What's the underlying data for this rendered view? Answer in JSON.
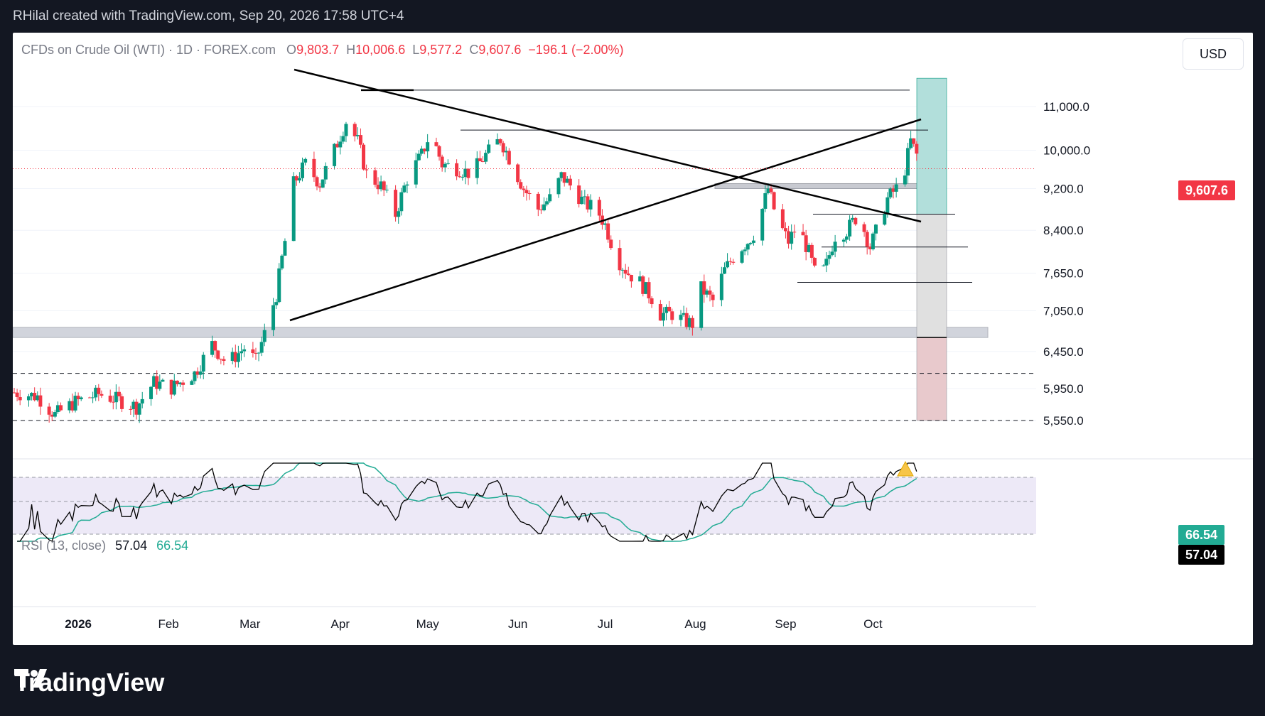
{
  "caption": "RHilal created with TradingView.com, Sep 20, 2026 17:58 UTC+4",
  "brand": {
    "name": "TradingView",
    "logo_icon": "tradingview-logo-icon"
  },
  "currency": "USD",
  "legend": {
    "symbol": "CFDs on Crude Oil (WTI) · 1D · FOREX.com",
    "open_label": "O",
    "open": "9,803.7",
    "high_label": "H",
    "high": "10,006.6",
    "low_label": "L",
    "low": "9,577.2",
    "close_label": "C",
    "close": "9,607.6",
    "change": "−196.1 (−2.00%)"
  },
  "rsi_legend": {
    "label": "RSI (13, close)",
    "value": "57.04",
    "ma": "66.54"
  },
  "badges": {
    "last_price": "9,607.6",
    "rsi_ma": "66.54",
    "rsi_value": "57.04"
  },
  "colors": {
    "up": "#089981",
    "down": "#f23645",
    "rsi_line": "#000000",
    "rsi_ma": "#22ab94",
    "rsi_band": "#ede9f7"
  },
  "chart_data": {
    "type": "candlestick",
    "price_axis": {
      "ticks": [
        11000,
        10000,
        9200,
        8400,
        7650,
        7050,
        6450,
        5950,
        5550
      ],
      "tick_labels": [
        "11,000.0",
        "10,000.0",
        "9,200.0",
        "8,400.0",
        "7,650.0",
        "7,050.0",
        "6,450.0",
        "5,950.0",
        "5,550.0"
      ],
      "scale": "log"
    },
    "time_axis": {
      "labels": [
        "2026",
        "Feb",
        "Mar",
        "Apr",
        "May",
        "Jun",
        "Jul",
        "Aug",
        "Sep",
        "Oct"
      ],
      "label_dates": [
        "2026-01-01",
        "2026-02-01",
        "2026-03-01",
        "2026-04-01",
        "2026-05-01",
        "2026-06-01",
        "2026-07-01",
        "2026-08-01",
        "2026-09-01",
        "2026-10-01"
      ],
      "start": "2025-12-10",
      "end": "2026-10-18"
    },
    "close_path": [
      [
        "2025-12-10",
        5900
      ],
      [
        "2025-12-18",
        5850
      ],
      [
        "2025-12-24",
        5620
      ],
      [
        "2025-12-31",
        5780
      ],
      [
        "2026-01-08",
        5880
      ],
      [
        "2026-01-15",
        5800
      ],
      [
        "2026-01-21",
        5720
      ],
      [
        "2026-01-27",
        6030
      ],
      [
        "2026-02-02",
        5960
      ],
      [
        "2026-02-10",
        6150
      ],
      [
        "2026-02-16",
        6550
      ],
      [
        "2026-02-21",
        6280
      ],
      [
        "2026-02-27",
        6500
      ],
      [
        "2026-03-03",
        6320
      ],
      [
        "2026-03-06",
        6700
      ],
      [
        "2026-03-10",
        7300
      ],
      [
        "2026-03-13",
        8200
      ],
      [
        "2026-03-16",
        9300
      ],
      [
        "2026-03-20",
        9700
      ],
      [
        "2026-03-25",
        9300
      ],
      [
        "2026-03-30",
        10000
      ],
      [
        "2026-04-03",
        10650
      ],
      [
        "2026-04-07",
        10200
      ],
      [
        "2026-04-10",
        9500
      ],
      [
        "2026-04-15",
        9250
      ],
      [
        "2026-04-20",
        8700
      ],
      [
        "2026-04-24",
        9400
      ],
      [
        "2026-04-29",
        9900
      ],
      [
        "2026-05-02",
        10400
      ],
      [
        "2026-05-06",
        9700
      ],
      [
        "2026-05-12",
        9600
      ],
      [
        "2026-05-16",
        9500
      ],
      [
        "2026-05-21",
        9900
      ],
      [
        "2026-05-26",
        10250
      ],
      [
        "2026-05-30",
        9700
      ],
      [
        "2026-06-03",
        9200
      ],
      [
        "2026-06-08",
        8800
      ],
      [
        "2026-06-12",
        9000
      ],
      [
        "2026-06-16",
        9450
      ],
      [
        "2026-06-20",
        9200
      ],
      [
        "2026-06-24",
        8900
      ],
      [
        "2026-06-28",
        8800
      ],
      [
        "2026-07-01",
        8500
      ],
      [
        "2026-07-05",
        7900
      ],
      [
        "2026-07-09",
        7650
      ],
      [
        "2026-07-13",
        7500
      ],
      [
        "2026-07-17",
        7250
      ],
      [
        "2026-07-20",
        7000
      ],
      [
        "2026-07-24",
        7000
      ],
      [
        "2026-07-28",
        6900
      ],
      [
        "2026-07-31",
        6850
      ],
      [
        "2026-08-03",
        7400
      ],
      [
        "2026-08-07",
        7200
      ],
      [
        "2026-08-11",
        7700
      ],
      [
        "2026-08-15",
        8000
      ],
      [
        "2026-08-19",
        8200
      ],
      [
        "2026-08-22",
        8400
      ],
      [
        "2026-08-26",
        9200
      ],
      [
        "2026-08-29",
        8600
      ],
      [
        "2026-09-02",
        8200
      ],
      [
        "2026-09-05",
        8500
      ],
      [
        "2026-09-09",
        8000
      ],
      [
        "2026-09-12",
        7500
      ],
      [
        "2026-09-15",
        7800
      ],
      [
        "2026-09-18",
        8300
      ],
      [
        "2026-09-22",
        8400
      ],
      [
        "2026-09-26",
        8700
      ],
      [
        "2026-09-30",
        8100
      ],
      [
        "2026-10-03",
        8500
      ],
      [
        "2026-10-06",
        9000
      ],
      [
        "2026-10-09",
        9200
      ],
      [
        "2026-10-12",
        9600
      ],
      [
        "2026-10-14",
        10200
      ],
      [
        "2026-10-16",
        9900
      ],
      [
        "2026-10-18",
        9607.6
      ]
    ],
    "rsi_axis": {
      "top": 66.54,
      "mid": 50,
      "bottom": 30
    },
    "drawings": {
      "descending_trendline": [
        [
          "2026-03-01",
          12000
        ],
        [
          "2026-10-18",
          8600
        ]
      ],
      "ascending_trendline": [
        [
          "2026-03-01",
          7000
        ],
        [
          "2026-10-18",
          10600
        ]
      ],
      "support_zone": [
        6650,
        6800
      ],
      "resistance_zone": [
        9200,
        9300
      ],
      "level_lines": [
        11400,
        10450,
        8700,
        8100,
        7500
      ],
      "dashed_levels": [
        6150,
        5550
      ],
      "position_box": {
        "target": 11700,
        "entry": 8700,
        "stop_mid": 6650,
        "stop": 5550
      }
    }
  }
}
